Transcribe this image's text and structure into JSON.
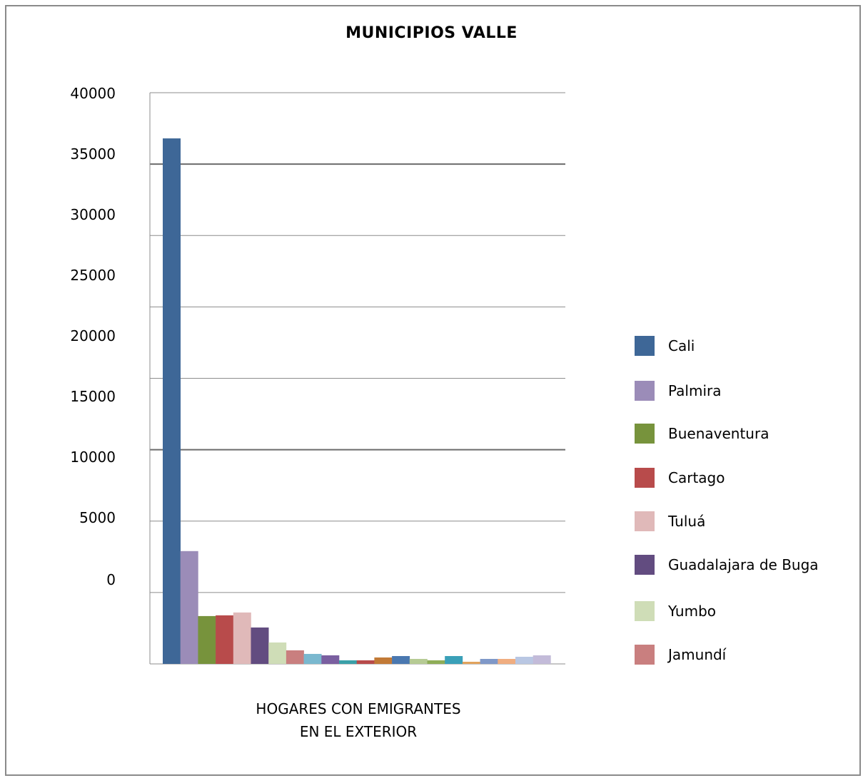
{
  "chart_data": {
    "type": "bar",
    "title": "MUNICIPIOS VALLE",
    "xlabel_lines": [
      "HOGARES CON EMIGRANTES",
      "EN EL EXTERIOR"
    ],
    "ylabel": "",
    "yticks": [
      "40000",
      "35000",
      "30000",
      "25000",
      "20000",
      "15000",
      "10000",
      "5000",
      "0"
    ],
    "grid": true,
    "legend_position": "right",
    "series": [
      {
        "name": "Cali",
        "value": 36800,
        "color": "#3e6797"
      },
      {
        "name": "Palmira",
        "value": 7900,
        "color": "#9b8cb8"
      },
      {
        "name": "Buenaventura",
        "value": 3350,
        "color": "#77933c"
      },
      {
        "name": "Cartago",
        "value": 3400,
        "color": "#b84b4b"
      },
      {
        "name": "Tuluá",
        "value": 3600,
        "color": "#e0b9b9"
      },
      {
        "name": "Guadalajara de Buga",
        "value": 2550,
        "color": "#624c80"
      },
      {
        "name": "Yumbo",
        "value": 1500,
        "color": "#cfddb7"
      },
      {
        "name": "Jamundí",
        "value": 950,
        "color": "#c97f7f"
      },
      {
        "value": 700,
        "color": "#7ab8cf"
      },
      {
        "value": 600,
        "color": "#7a5fa0"
      },
      {
        "value": 250,
        "color": "#3aa0a8"
      },
      {
        "value": 250,
        "color": "#b84b4b"
      },
      {
        "value": 450,
        "color": "#c27a36"
      },
      {
        "value": 550,
        "color": "#4a78b0"
      },
      {
        "value": 350,
        "color": "#b6cb94"
      },
      {
        "value": 250,
        "color": "#8fad57"
      },
      {
        "value": 550,
        "color": "#3aa0b8"
      },
      {
        "value": 150,
        "color": "#e2a35c"
      },
      {
        "value": 350,
        "color": "#7f98c8"
      },
      {
        "value": 350,
        "color": "#f0ad80"
      },
      {
        "value": 500,
        "color": "#b9c7e3"
      },
      {
        "value": 600,
        "color": "#c3bbd9"
      }
    ]
  }
}
